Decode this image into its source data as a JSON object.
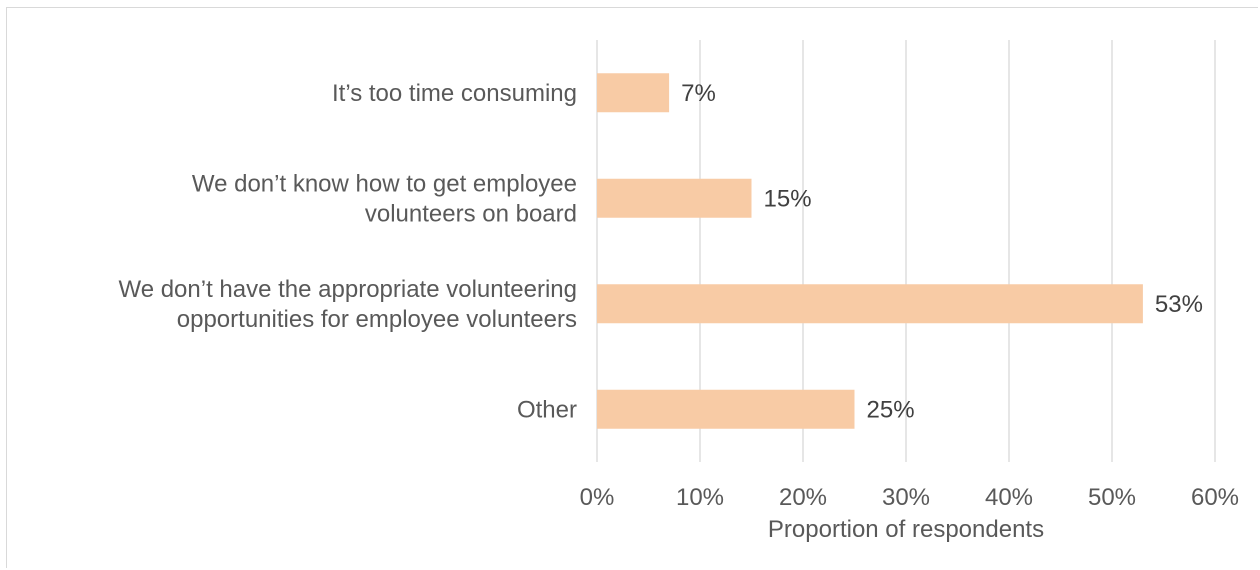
{
  "chart_data": {
    "type": "bar",
    "orientation": "horizontal",
    "categories": [
      [
        "It’s too time consuming"
      ],
      [
        "We don’t know how to get employee",
        "volunteers on board"
      ],
      [
        "We don’t have the appropriate volunteering",
        "opportunities for employee volunteers"
      ],
      [
        "Other"
      ]
    ],
    "values": [
      7,
      15,
      53,
      25
    ],
    "data_labels": [
      "7%",
      "15%",
      "53%",
      "25%"
    ],
    "xlabel": "Proportion of respondents",
    "xlim": [
      0,
      60
    ],
    "xticks": [
      0,
      10,
      20,
      30,
      40,
      50,
      60
    ],
    "xtick_labels": [
      "0%",
      "10%",
      "20%",
      "30%",
      "40%",
      "50%",
      "60%"
    ],
    "grid": "vertical",
    "legend": "none",
    "bar_color": "#f8cba5",
    "grid_color": "#d9d9d9"
  }
}
